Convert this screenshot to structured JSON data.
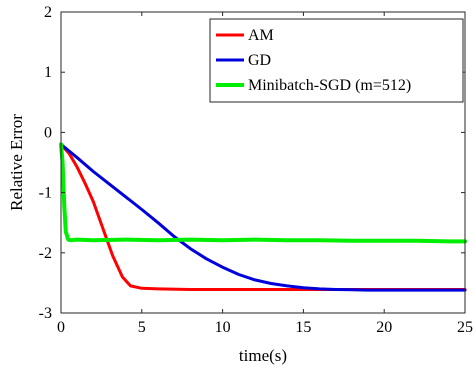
{
  "chart_data": {
    "type": "line",
    "title": "",
    "xlabel": "time(s)",
    "ylabel": "Relative Error",
    "xlim": [
      0,
      25
    ],
    "ylim": [
      -3,
      2
    ],
    "xticks": [
      0,
      5,
      10,
      15,
      20,
      25
    ],
    "yticks": [
      -3,
      -2,
      -1,
      0,
      1,
      2
    ],
    "xtick_labels": [
      "0",
      "5",
      "10",
      "15",
      "20",
      "25"
    ],
    "ytick_labels": [
      "-3",
      "-2",
      "-1",
      "0",
      "1",
      "2"
    ],
    "grid": false,
    "legend_position": "top-right",
    "series": [
      {
        "name": "AM",
        "color": "#ff0000",
        "x": [
          0,
          0.5,
          1.0,
          1.5,
          2.0,
          2.6,
          3.2,
          3.8,
          4.3,
          5.0,
          6.0,
          8.0,
          10.0,
          12.0,
          15.0,
          20.0,
          25.0
        ],
        "y": [
          -0.2,
          -0.35,
          -0.58,
          -0.85,
          -1.15,
          -1.6,
          -2.05,
          -2.4,
          -2.55,
          -2.59,
          -2.6,
          -2.61,
          -2.61,
          -2.61,
          -2.61,
          -2.61,
          -2.61
        ]
      },
      {
        "name": "GD",
        "color": "#0000dd",
        "x": [
          0,
          1,
          2,
          3,
          4,
          5,
          6,
          7,
          8,
          9,
          10,
          11,
          12,
          13,
          14,
          15,
          16,
          17,
          18,
          19,
          20,
          21,
          22,
          23,
          24,
          25
        ],
        "y": [
          -0.2,
          -0.42,
          -0.65,
          -0.86,
          -1.07,
          -1.28,
          -1.5,
          -1.73,
          -1.93,
          -2.1,
          -2.24,
          -2.36,
          -2.45,
          -2.51,
          -2.55,
          -2.58,
          -2.6,
          -2.61,
          -2.615,
          -2.62,
          -2.62,
          -2.62,
          -2.62,
          -2.62,
          -2.62,
          -2.62
        ]
      },
      {
        "name": "Minibatch-SGD (m=512)",
        "color": "#00ee00",
        "x": [
          0,
          0.1,
          0.2,
          0.3,
          0.45,
          0.6,
          1.0,
          2.0,
          4.0,
          6.0,
          8.0,
          10.0,
          12.0,
          14.0,
          16.0,
          18.0,
          20.0,
          22.0,
          24.0,
          25.0
        ],
        "y": [
          -0.2,
          -0.5,
          -1.2,
          -1.65,
          -1.78,
          -1.79,
          -1.78,
          -1.79,
          -1.78,
          -1.79,
          -1.78,
          -1.79,
          -1.78,
          -1.79,
          -1.79,
          -1.8,
          -1.8,
          -1.8,
          -1.81,
          -1.81
        ]
      }
    ]
  }
}
